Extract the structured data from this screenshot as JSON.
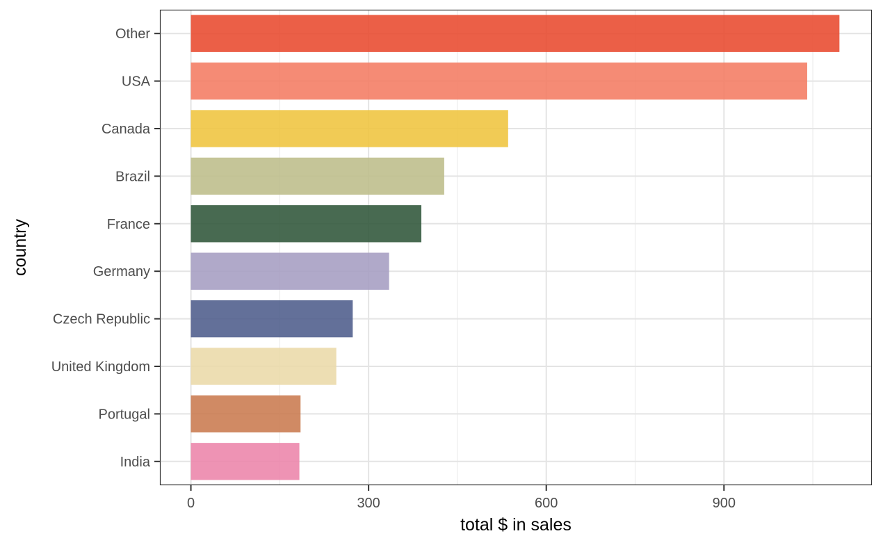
{
  "chart_data": {
    "type": "bar",
    "orientation": "horizontal",
    "title": "",
    "xlabel": "total $ in sales",
    "ylabel": "country",
    "categories": [
      "Other",
      "USA",
      "Canada",
      "Brazil",
      "France",
      "Germany",
      "Czech Republic",
      "United Kingdom",
      "Portugal",
      "India"
    ],
    "values": [
      1094.94,
      1040.49,
      535.59,
      427.68,
      389.07,
      334.62,
      273.24,
      245.52,
      185.13,
      183.15
    ],
    "colors": [
      "#e8492d",
      "#f47b62",
      "#efc43e",
      "#bdbd8a",
      "#2f5539",
      "#a59dc2",
      "#4d5c8b",
      "#ead9a8",
      "#c97a4e",
      "#ec84aa"
    ],
    "xlim": [
      -52.3,
      1149.7
    ],
    "xticks": [
      0,
      300,
      600,
      900
    ],
    "xtick_labels": [
      "0",
      "300",
      "600",
      "900"
    ],
    "grid": true,
    "legend": "none"
  }
}
